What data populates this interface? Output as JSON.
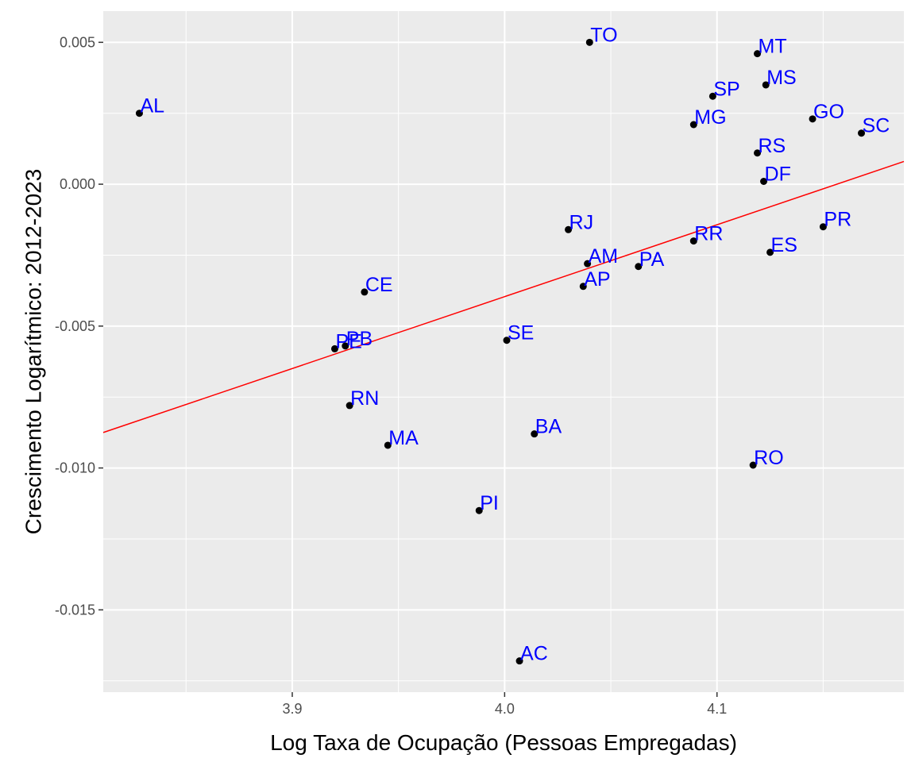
{
  "chart_data": {
    "type": "scatter",
    "xlabel": "Log Taxa de Ocupação (Pessoas Empregadas)",
    "ylabel": "Crescimento Logarítmico: 2012-2023",
    "xlim": [
      3.811,
      4.188
    ],
    "ylim": [
      -0.0179,
      0.0061
    ],
    "x_ticks": [
      {
        "value": 3.9,
        "label": "3.9"
      },
      {
        "value": 4.0,
        "label": "4.0"
      },
      {
        "value": 4.1,
        "label": "4.1"
      }
    ],
    "y_ticks": [
      {
        "value": 0.005,
        "label": "0.005"
      },
      {
        "value": 0.0,
        "label": "0.000"
      },
      {
        "value": -0.005,
        "label": "-0.005"
      },
      {
        "value": -0.01,
        "label": "-0.010"
      },
      {
        "value": -0.015,
        "label": "-0.015"
      }
    ],
    "grid": true,
    "legend": "none",
    "points": [
      {
        "label": "AL",
        "x": 3.828,
        "y": 0.0025
      },
      {
        "label": "PE",
        "x": 3.92,
        "y": -0.0058
      },
      {
        "label": "PB",
        "x": 3.925,
        "y": -0.0057
      },
      {
        "label": "RN",
        "x": 3.927,
        "y": -0.0078
      },
      {
        "label": "CE",
        "x": 3.934,
        "y": -0.0038
      },
      {
        "label": "MA",
        "x": 3.945,
        "y": -0.0092
      },
      {
        "label": "PI",
        "x": 3.988,
        "y": -0.0115
      },
      {
        "label": "SE",
        "x": 4.001,
        "y": -0.0055
      },
      {
        "label": "AC",
        "x": 4.007,
        "y": -0.0168
      },
      {
        "label": "BA",
        "x": 4.014,
        "y": -0.0088
      },
      {
        "label": "RJ",
        "x": 4.03,
        "y": -0.0016
      },
      {
        "label": "AP",
        "x": 4.037,
        "y": -0.0036
      },
      {
        "label": "AM",
        "x": 4.039,
        "y": -0.0028
      },
      {
        "label": "TO",
        "x": 4.04,
        "y": 0.005
      },
      {
        "label": "PA",
        "x": 4.063,
        "y": -0.0029
      },
      {
        "label": "MG",
        "x": 4.089,
        "y": 0.0021
      },
      {
        "label": "RR",
        "x": 4.089,
        "y": -0.002
      },
      {
        "label": "SP",
        "x": 4.098,
        "y": 0.0031
      },
      {
        "label": "RO",
        "x": 4.117,
        "y": -0.0099
      },
      {
        "label": "MT",
        "x": 4.119,
        "y": 0.0046
      },
      {
        "label": "RS",
        "x": 4.119,
        "y": 0.0011
      },
      {
        "label": "DF",
        "x": 4.122,
        "y": 0.0001
      },
      {
        "label": "MS",
        "x": 4.123,
        "y": 0.0035
      },
      {
        "label": "ES",
        "x": 4.125,
        "y": -0.0024
      },
      {
        "label": "GO",
        "x": 4.145,
        "y": 0.0023
      },
      {
        "label": "PR",
        "x": 4.15,
        "y": -0.0015
      },
      {
        "label": "SC",
        "x": 4.168,
        "y": 0.0018
      }
    ],
    "trend_line": {
      "x": [
        3.811,
        4.188
      ],
      "y": [
        -0.00875,
        0.0008
      ]
    },
    "colors": {
      "panel": "#ebebeb",
      "grid": "#ffffff",
      "point": "#000000",
      "label": "#0000ff",
      "trend_line": "#ff0000"
    }
  }
}
